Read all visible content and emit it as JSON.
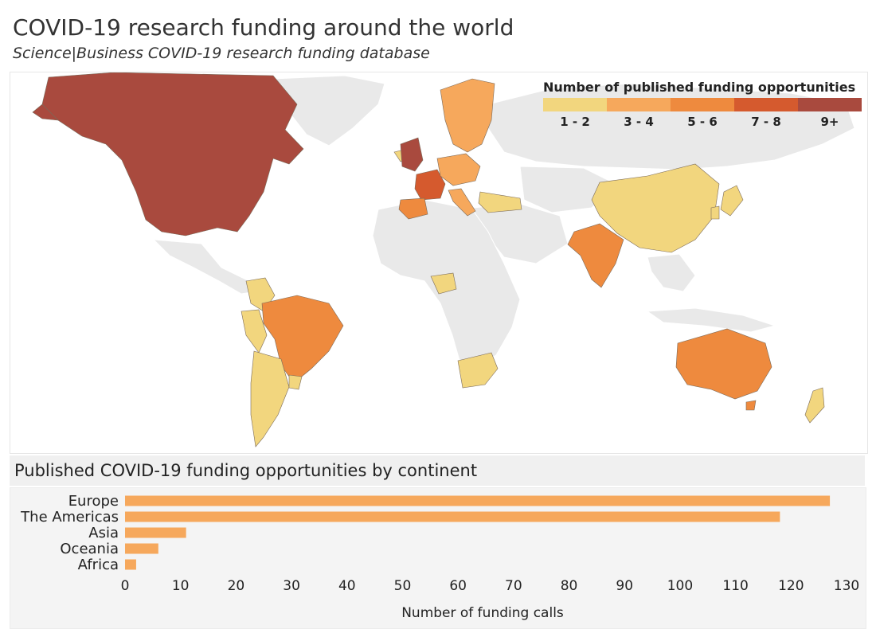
{
  "title": "COVID-19 research funding around the world",
  "subtitle": "Science|Business COVID-19 research funding database",
  "legend": {
    "title": "Number of published funding opportunities",
    "bins": [
      {
        "label": "1 - 2",
        "color": "#f2d67e"
      },
      {
        "label": "3 - 4",
        "color": "#f6a85c"
      },
      {
        "label": "5 - 6",
        "color": "#ee8a3e"
      },
      {
        "label": "7 - 8",
        "color": "#d55a2e"
      },
      {
        "label": "9+",
        "color": "#a94a3e"
      }
    ]
  },
  "colors": {
    "land": "#e8e8e8",
    "border": "#ffffff",
    "bar": "#f6a85c"
  },
  "bar_chart_title": "Published COVID-19 funding opportunities by continent",
  "chart_data": {
    "type": "bar",
    "orientation": "horizontal",
    "title": "Published COVID-19 funding opportunities by continent",
    "categories": [
      "Europe",
      "The Americas",
      "Asia",
      "Oceania",
      "Africa"
    ],
    "values": [
      127,
      118,
      11,
      6,
      2
    ],
    "xlabel": "Number of funding calls",
    "ylabel": "",
    "xlim": [
      0,
      130
    ],
    "xticks": [
      0,
      10,
      20,
      30,
      40,
      50,
      60,
      70,
      80,
      90,
      100,
      110,
      120,
      130
    ],
    "grid": false
  }
}
